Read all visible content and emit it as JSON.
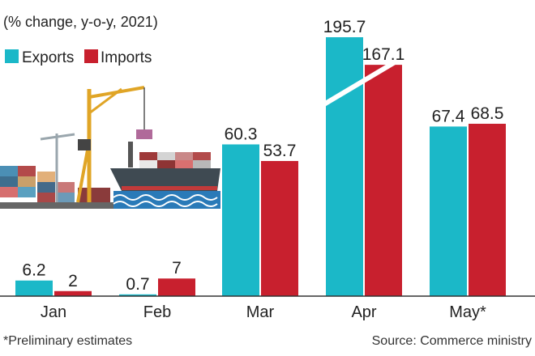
{
  "colors": {
    "exports": "#1bb8c8",
    "imports": "#c8202e",
    "text": "#222222",
    "baseline": "#333333"
  },
  "chart_data": {
    "type": "bar",
    "subtitle": "(% change, y-o-y, 2021)",
    "categories": [
      "Jan",
      "Feb",
      "Mar",
      "Apr",
      "May*"
    ],
    "series": [
      {
        "name": "Exports",
        "values": [
          6.2,
          0.7,
          60.3,
          195.7,
          67.4
        ]
      },
      {
        "name": "Imports",
        "values": [
          2,
          7,
          53.7,
          167.1,
          68.5
        ]
      }
    ],
    "value_labels": {
      "Exports": [
        "6.2",
        "0.7",
        "60.3",
        "195.7",
        "67.4"
      ],
      "Imports": [
        "2",
        "7",
        "53.7",
        "167.1",
        "68.5"
      ]
    },
    "axis_break": {
      "category": "Apr",
      "note": "broken scale"
    },
    "legend": "top-left",
    "grid": false
  },
  "footnote": "*Preliminary estimates",
  "source": "Source: Commerce ministry"
}
